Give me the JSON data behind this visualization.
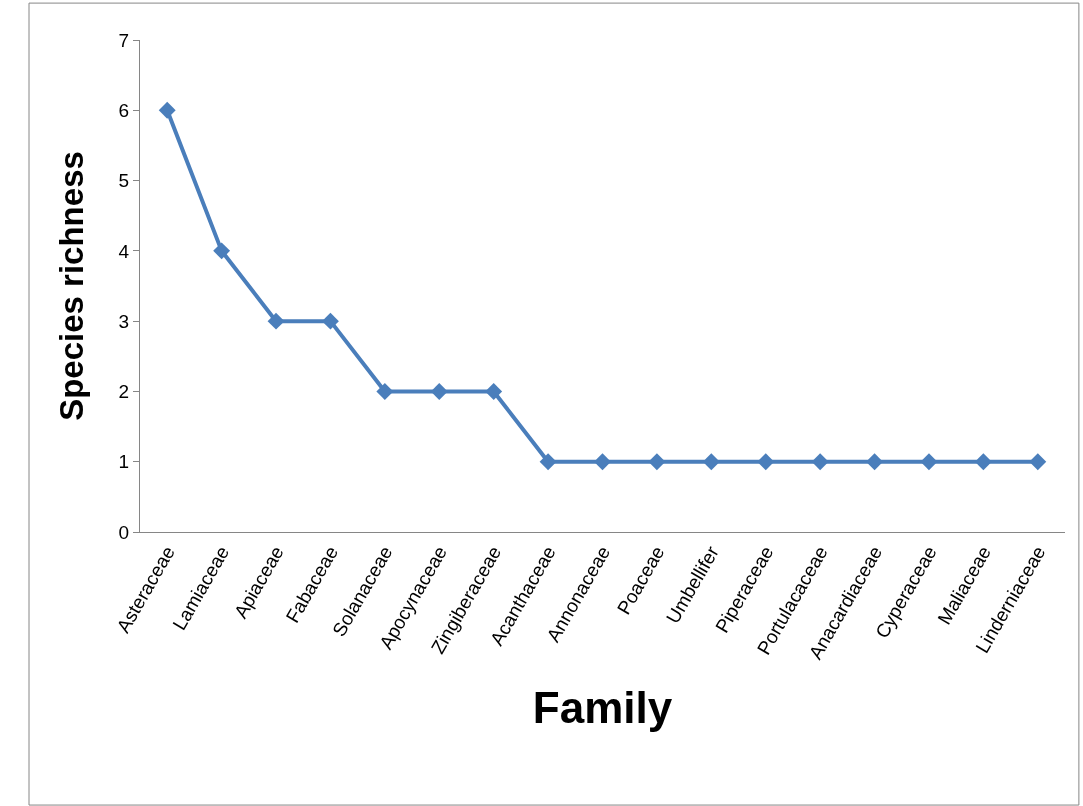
{
  "chart_data": {
    "type": "line",
    "xlabel": "Family",
    "ylabel": "Species richness",
    "categories": [
      "Asteraceae",
      "Lamiaceae",
      "Apiaceae",
      "Fabaceae",
      "Solanaceae",
      "Apocynaceae",
      "Zingiberaceae",
      "Acanthaceae",
      "Annonaceae",
      "Poaceae",
      "Umbellifer",
      "Piperaceae",
      "Portulacaceae",
      "Anacardiaceae",
      "Cyperaceae",
      "Maliaceae",
      "Linderniaceae"
    ],
    "series": [
      {
        "color": "#4a7ebb",
        "values": [
          6,
          4,
          3,
          3,
          2,
          2,
          2,
          1,
          1,
          1,
          1,
          1,
          1,
          1,
          1,
          1,
          1
        ]
      }
    ],
    "ylim": [
      0,
      7
    ],
    "yticks": [
      0,
      1,
      2,
      3,
      4,
      5,
      6,
      7
    ],
    "legend": false,
    "marker": "diamond",
    "line_style": "solid"
  }
}
